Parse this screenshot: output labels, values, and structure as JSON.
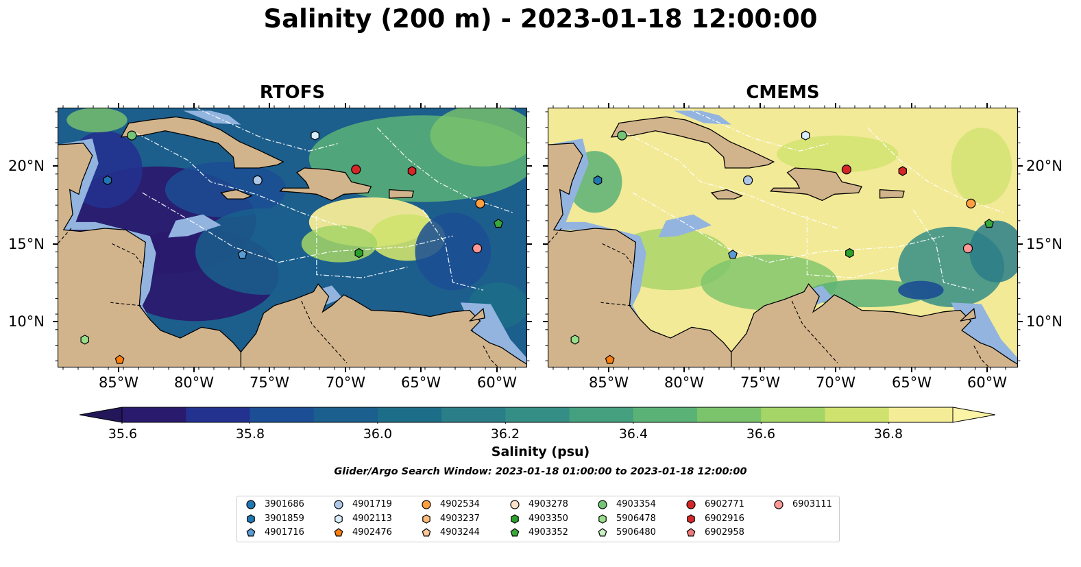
{
  "suptitle": "Salinity (200 m) - 2023-01-18 12:00:00",
  "panels": [
    {
      "title": "RTOFS",
      "x_ticks": [
        "85°W",
        "80°W",
        "75°W",
        "70°W",
        "65°W",
        "60°W"
      ],
      "y_ticks": [
        "20°N",
        "15°N",
        "10°N"
      ]
    },
    {
      "title": "CMEMS",
      "x_ticks": [
        "85°W",
        "80°W",
        "75°W",
        "70°W",
        "65°W",
        "60°W"
      ],
      "y_ticks": [
        "20°N",
        "15°N",
        "10°N"
      ]
    }
  ],
  "colorbar": {
    "label": "Salinity (psu)",
    "ticks": [
      "35.6",
      "35.8",
      "36.0",
      "36.2",
      "36.4",
      "36.6",
      "36.8"
    ],
    "range": [
      35.6,
      36.9
    ],
    "extend": "both",
    "colors": [
      "#2a1a6e",
      "#23318f",
      "#1b4e94",
      "#1a5f8d",
      "#1c6e88",
      "#2a7e88",
      "#358e86",
      "#44a07f",
      "#5bb277",
      "#7cc46c",
      "#a5d566",
      "#cfe26e",
      "#f5ec97"
    ]
  },
  "search_window": "Glider/Argo Search Window: 2023-01-18 01:00:00 to 2023-01-18 12:00:00",
  "legend": {
    "entries": [
      {
        "id": "3901686",
        "marker": "circle",
        "color": "#1f77b4"
      },
      {
        "id": "3901859",
        "marker": "hexagon",
        "color": "#1f77b4"
      },
      {
        "id": "4901716",
        "marker": "pentagon",
        "color": "#5a9bd4"
      },
      {
        "id": "4901719",
        "marker": "circle",
        "color": "#aec7e8"
      },
      {
        "id": "4902113",
        "marker": "hexagon",
        "color": "#d8eefc"
      },
      {
        "id": "4902476",
        "marker": "pentagon",
        "color": "#ff7f0e"
      },
      {
        "id": "4902534",
        "marker": "circle",
        "color": "#ff9f40"
      },
      {
        "id": "4903237",
        "marker": "hexagon",
        "color": "#ffbb78"
      },
      {
        "id": "4903244",
        "marker": "pentagon",
        "color": "#ffc89a"
      },
      {
        "id": "4903278",
        "marker": "circle",
        "color": "#fde0c8"
      },
      {
        "id": "4903350",
        "marker": "hexagon",
        "color": "#2ca02c"
      },
      {
        "id": "4903352",
        "marker": "pentagon",
        "color": "#3aa83a"
      },
      {
        "id": "4903354",
        "marker": "circle",
        "color": "#74c476"
      },
      {
        "id": "5906478",
        "marker": "hexagon",
        "color": "#98df8a"
      },
      {
        "id": "5906480",
        "marker": "pentagon",
        "color": "#c7f0c0"
      },
      {
        "id": "6902771",
        "marker": "circle",
        "color": "#d62728"
      },
      {
        "id": "6902916",
        "marker": "hexagon",
        "color": "#d62728"
      },
      {
        "id": "6902958",
        "marker": "pentagon",
        "color": "#f07a7a"
      },
      {
        "id": "6903111",
        "marker": "circle",
        "color": "#ff9896"
      }
    ]
  },
  "floats_on_map": [
    {
      "id": "3901859",
      "lon": -85.8,
      "lat": 19.1
    },
    {
      "id": "4903354",
      "lon": -84.2,
      "lat": 22.0
    },
    {
      "id": "5906478",
      "lon": -87.3,
      "lat": 8.8
    },
    {
      "id": "4902476",
      "lon": -85.0,
      "lat": 7.5
    },
    {
      "id": "4901719",
      "lon": -75.9,
      "lat": 19.1
    },
    {
      "id": "4902113",
      "lon": -72.1,
      "lat": 22.0
    },
    {
      "id": "4901716",
      "lon": -76.9,
      "lat": 14.3
    },
    {
      "id": "6902771",
      "lon": -69.4,
      "lat": 19.8
    },
    {
      "id": "6902916",
      "lon": -65.7,
      "lat": 19.7
    },
    {
      "id": "4903350",
      "lon": -69.2,
      "lat": 14.4
    },
    {
      "id": "4902534",
      "lon": -61.2,
      "lat": 17.6
    },
    {
      "id": "4903352",
      "lon": -60.0,
      "lat": 16.3
    },
    {
      "id": "6903111",
      "lon": -61.4,
      "lat": 14.7
    }
  ]
}
